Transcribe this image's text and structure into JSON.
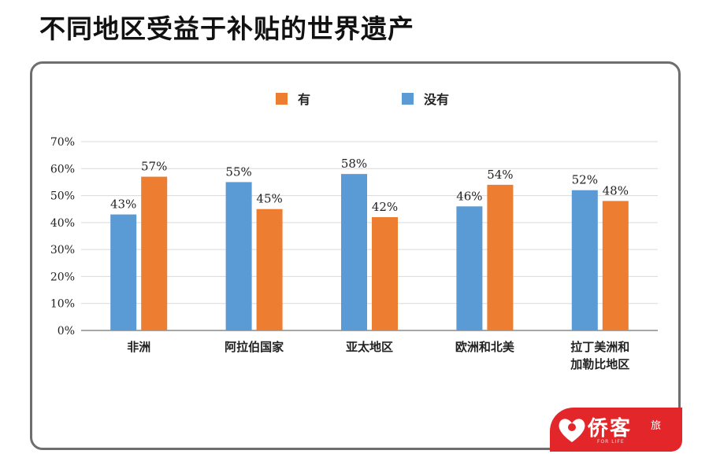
{
  "page": {
    "title": "不同地区受益于补贴的世界遗产"
  },
  "logo": {
    "text": "侨客",
    "sub": "旅",
    "small": "FOR LIFE"
  },
  "colors": {
    "you": "#ed7d31",
    "meiyou": "#5b9bd5",
    "grid": "#d9d9d9",
    "axis": "#8a8a8a",
    "text": "#222222"
  },
  "chart_data": {
    "type": "bar",
    "categories": [
      [
        "非洲"
      ],
      [
        "阿拉伯国家"
      ],
      [
        "亚太地区"
      ],
      [
        "欧洲和北美"
      ],
      [
        "拉丁美洲和",
        "加勒比地区"
      ]
    ],
    "series": [
      {
        "name": "没有",
        "values": [
          43,
          55,
          58,
          46,
          52
        ]
      },
      {
        "name": "有",
        "values": [
          57,
          45,
          42,
          54,
          48
        ]
      }
    ],
    "legend_order": [
      "有",
      "没有"
    ],
    "value_suffix": "%",
    "ylim": [
      0,
      70
    ],
    "yticks": [
      0,
      10,
      20,
      30,
      40,
      50,
      60,
      70
    ],
    "legend_position": "top-center",
    "grid": true,
    "title": "",
    "xlabel": "",
    "ylabel": ""
  }
}
